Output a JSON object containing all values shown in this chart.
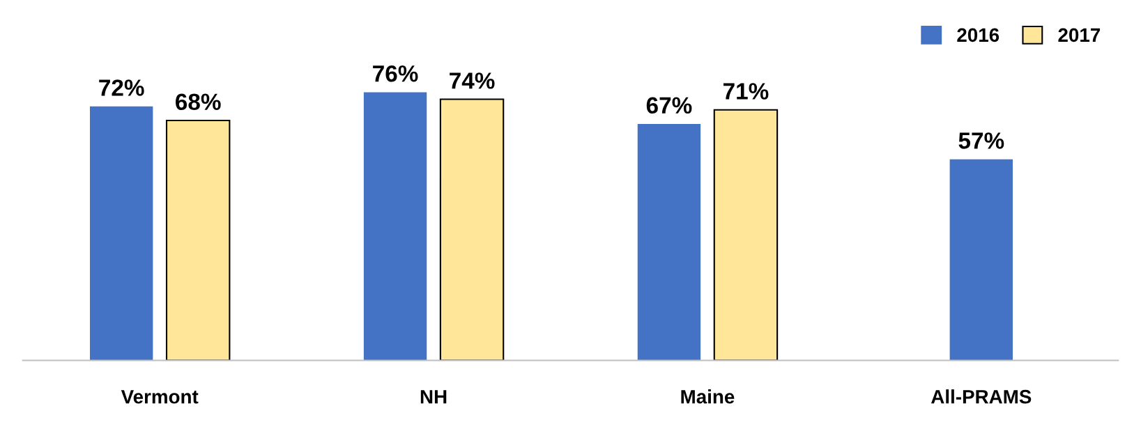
{
  "chart_data": {
    "type": "bar",
    "categories": [
      "Vermont",
      "NH",
      "Maine",
      "All-PRAMS"
    ],
    "series": [
      {
        "name": "2016",
        "color": "#4472c4",
        "values": [
          72,
          76,
          67,
          57
        ],
        "value_labels": [
          "72%",
          "76%",
          "67%",
          "57%"
        ]
      },
      {
        "name": "2017",
        "color": "#ffe699",
        "values": [
          68,
          74,
          71,
          null
        ],
        "value_labels": [
          "68%",
          "74%",
          "71%",
          null
        ]
      }
    ],
    "legend": "top right",
    "grid": false,
    "tick_labels": "x"
  }
}
